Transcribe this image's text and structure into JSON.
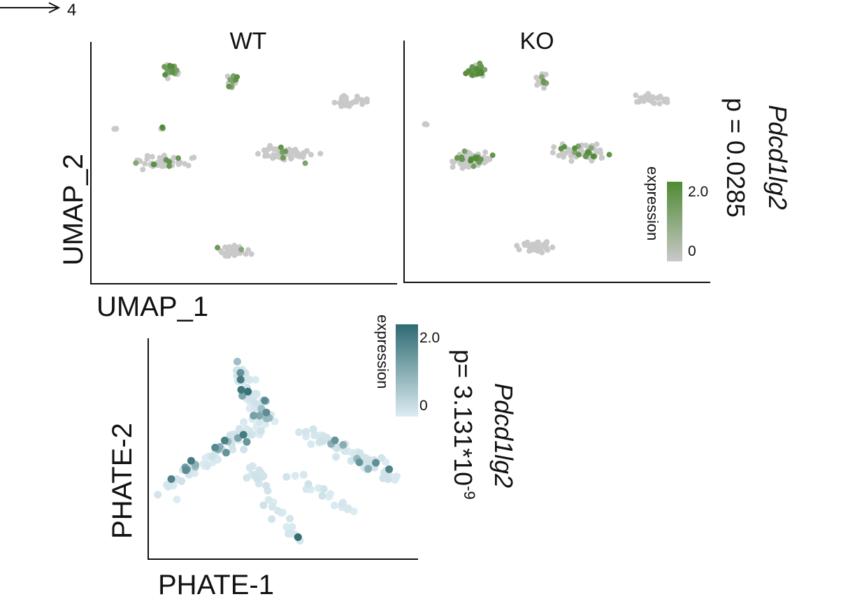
{
  "header": {
    "arrow_label": "4"
  },
  "colors": {
    "umap_low": "#c9c9c9",
    "umap_high": "#4f8a32",
    "phate_low": "#dcecf2",
    "phate_high": "#2f6a72"
  },
  "chart_data": [
    {
      "type": "scatter",
      "panel": "WT",
      "title": "WT",
      "xlabel": "UMAP_1",
      "ylabel": "UMAP_2",
      "color_by": "expression",
      "xlim": [
        0,
        10
      ],
      "ylim": [
        0,
        10
      ],
      "clusters": [
        {
          "cx": 2.5,
          "cy": 9.0,
          "rx": 0.45,
          "ry": 0.4,
          "n": 34,
          "expressing_fraction": 0.45
        },
        {
          "cx": 4.6,
          "cy": 8.5,
          "rx": 0.25,
          "ry": 0.5,
          "n": 16,
          "expressing_fraction": 0.35
        },
        {
          "cx": 8.6,
          "cy": 7.7,
          "rx": 0.9,
          "ry": 0.35,
          "n": 32,
          "expressing_fraction": 0.0
        },
        {
          "cx": 2.3,
          "cy": 5.0,
          "rx": 1.2,
          "ry": 0.45,
          "n": 55,
          "expressing_fraction": 0.15
        },
        {
          "cx": 6.4,
          "cy": 5.4,
          "rx": 1.35,
          "ry": 0.5,
          "n": 60,
          "expressing_fraction": 0.12
        },
        {
          "cx": 4.6,
          "cy": 1.1,
          "rx": 0.75,
          "ry": 0.3,
          "n": 42,
          "expressing_fraction": 0.04
        },
        {
          "cx": 0.6,
          "cy": 6.5,
          "rx": 0.1,
          "ry": 0.08,
          "n": 3,
          "expressing_fraction": 0.0
        },
        {
          "cx": 2.2,
          "cy": 6.5,
          "rx": 0.2,
          "ry": 0.1,
          "n": 3,
          "expressing_fraction": 0.5
        }
      ]
    },
    {
      "type": "scatter",
      "panel": "KO",
      "title": "KO",
      "xlabel": "",
      "ylabel": "",
      "color_by": "expression",
      "xlim": [
        0,
        10
      ],
      "ylim": [
        0,
        10
      ],
      "clusters": [
        {
          "cx": 2.2,
          "cy": 9.0,
          "rx": 0.45,
          "ry": 0.4,
          "n": 38,
          "expressing_fraction": 0.6
        },
        {
          "cx": 4.5,
          "cy": 8.5,
          "rx": 0.25,
          "ry": 0.5,
          "n": 16,
          "expressing_fraction": 0.4
        },
        {
          "cx": 8.2,
          "cy": 7.7,
          "rx": 0.9,
          "ry": 0.35,
          "n": 30,
          "expressing_fraction": 0.0
        },
        {
          "cx": 2.0,
          "cy": 5.0,
          "rx": 1.3,
          "ry": 0.5,
          "n": 60,
          "expressing_fraction": 0.3
        },
        {
          "cx": 5.9,
          "cy": 5.4,
          "rx": 1.4,
          "ry": 0.55,
          "n": 64,
          "expressing_fraction": 0.22
        },
        {
          "cx": 4.3,
          "cy": 1.2,
          "rx": 0.75,
          "ry": 0.3,
          "n": 44,
          "expressing_fraction": 0.0
        },
        {
          "cx": 0.5,
          "cy": 6.6,
          "rx": 0.1,
          "ry": 0.08,
          "n": 3,
          "expressing_fraction": 0.0
        }
      ]
    },
    {
      "type": "scatter",
      "panel": "PHATE",
      "title": "",
      "xlabel": "PHATE-1",
      "ylabel": "PHATE-2",
      "color_by": "expression",
      "xlim": [
        0,
        10
      ],
      "ylim": [
        0,
        10
      ],
      "arms": [
        {
          "from": [
            3.2,
            8.8
          ],
          "to": [
            4.3,
            6.4
          ],
          "n": 50,
          "spread": 0.55,
          "expressing_fraction": 0.2
        },
        {
          "from": [
            4.3,
            6.4
          ],
          "to": [
            0.5,
            3.0
          ],
          "n": 75,
          "spread": 0.7,
          "expressing_fraction": 0.22
        },
        {
          "from": [
            5.8,
            5.8
          ],
          "to": [
            9.3,
            3.7
          ],
          "n": 70,
          "spread": 0.55,
          "expressing_fraction": 0.04
        },
        {
          "from": [
            3.6,
            4.3
          ],
          "to": [
            5.5,
            0.7
          ],
          "n": 30,
          "spread": 0.6,
          "expressing_fraction": 0.05
        },
        {
          "from": [
            5.2,
            3.8
          ],
          "to": [
            7.6,
            2.0
          ],
          "n": 18,
          "spread": 0.4,
          "expressing_fraction": 0.0
        }
      ]
    }
  ],
  "annotations": {
    "umap": {
      "gene": "Pdcd1lg2",
      "pvalue": "p = 0.0285"
    },
    "phate": {
      "gene": "Pdcd1lg2",
      "pvalue_prefix": "p= 3.131*10",
      "pvalue_exp": "-9"
    }
  },
  "legends": {
    "umap": {
      "title": "expression",
      "max_label": "2.0",
      "min_label": "0",
      "max": 2.0,
      "min": 0
    },
    "phate": {
      "title": "expression",
      "max_label": "2.0",
      "min_label": "0",
      "max": 2.0,
      "min": 0
    }
  }
}
